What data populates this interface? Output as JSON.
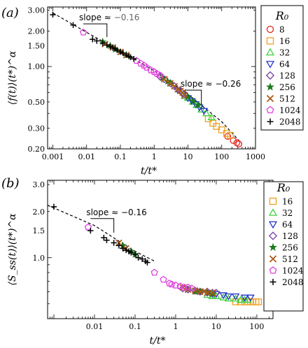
{
  "chart_data": [
    {
      "panel": "(a)",
      "type": "scatter",
      "xscale": "log",
      "yscale": "log",
      "xlabel": "t/t*",
      "ylabel": "⟨f(t)⟩(t*)^α",
      "xlim": [
        0.0007,
        1000
      ],
      "ylim": [
        0.2,
        3.2
      ],
      "x_tick_labels": [
        "0.001",
        "0.01",
        "0.1",
        "1",
        "10",
        "100",
        "1000"
      ],
      "x_ticks": [
        0.001,
        0.01,
        0.1,
        1,
        10,
        100,
        1000
      ],
      "y_tick_labels": [
        "3.00",
        "2.00",
        "1.50",
        "1.00",
        "0.50",
        "0.30",
        "0.20"
      ],
      "y_ticks": [
        3.0,
        2.0,
        1.5,
        1.0,
        0.5,
        0.3,
        0.2
      ],
      "legend_title": "R₀",
      "legend_position": "right",
      "annotations": [
        {
          "prefix": "slope ≈ ",
          "value": "−0.16"
        },
        {
          "prefix": "slope ≈ ",
          "value": "−0.26"
        }
      ],
      "annotation_slopes": [
        {
          "x0": 0.008,
          "x1": 0.04,
          "y0": 2.3,
          "slope": -0.16
        },
        {
          "x0": 8,
          "x1": 25,
          "y0": 0.63,
          "slope": -0.26
        }
      ],
      "fit_line": [
        [
          0.001,
          2.85
        ],
        [
          0.01,
          1.95
        ],
        [
          0.1,
          1.35
        ],
        [
          1,
          0.92
        ],
        [
          10,
          0.58
        ],
        [
          100,
          0.34
        ],
        [
          400,
          0.22
        ]
      ],
      "series": [
        {
          "name": "8",
          "marker": "circle",
          "color": "#e8251d",
          "points": [
            [
              150,
              0.255
            ],
            [
              220,
              0.235
            ],
            [
              280,
              0.225
            ],
            [
              320,
              0.22
            ]
          ]
        },
        {
          "name": "16",
          "marker": "square",
          "color": "#f0a020",
          "points": [
            [
              40,
              0.36
            ],
            [
              55,
              0.33
            ],
            [
              70,
              0.31
            ],
            [
              100,
              0.29
            ],
            [
              140,
              0.27
            ],
            [
              180,
              0.26
            ]
          ]
        },
        {
          "name": "32",
          "marker": "triangle-up",
          "color": "#3ecf3e",
          "points": [
            [
              8,
              0.56
            ],
            [
              10,
              0.54
            ],
            [
              14,
              0.5
            ],
            [
              18,
              0.47
            ],
            [
              25,
              0.43
            ],
            [
              35,
              0.4
            ],
            [
              50,
              0.37
            ]
          ]
        },
        {
          "name": "64",
          "marker": "triangle-down",
          "color": "#2233cc",
          "points": [
            [
              5,
              0.63
            ],
            [
              7,
              0.58
            ],
            [
              10,
              0.54
            ],
            [
              13,
              0.51
            ],
            [
              17,
              0.48
            ],
            [
              22,
              0.45
            ],
            [
              30,
              0.42
            ]
          ]
        },
        {
          "name": "128",
          "marker": "diamond",
          "color": "#7a3fa0",
          "points": [
            [
              1.5,
              0.82
            ],
            [
              2,
              0.78
            ],
            [
              3,
              0.72
            ],
            [
              4,
              0.68
            ],
            [
              6,
              0.62
            ],
            [
              8,
              0.58
            ]
          ]
        },
        {
          "name": "256",
          "marker": "star",
          "color": "#1a7a1a",
          "points": [
            [
              0.03,
              1.62
            ],
            [
              0.05,
              1.5
            ],
            [
              0.07,
              1.4
            ],
            [
              0.1,
              1.33
            ],
            [
              0.15,
              1.25
            ],
            [
              1.8,
              0.8
            ],
            [
              2.5,
              0.75
            ],
            [
              3,
              0.72
            ],
            [
              10,
              0.55
            ],
            [
              14,
              0.51
            ],
            [
              20,
              0.47
            ]
          ]
        },
        {
          "name": "512",
          "marker": "x",
          "color": "#b05a18",
          "points": [
            [
              0.035,
              1.55
            ],
            [
              0.06,
              1.45
            ],
            [
              0.1,
              1.33
            ],
            [
              0.15,
              1.25
            ],
            [
              2,
              0.78
            ],
            [
              3,
              0.72
            ],
            [
              4,
              0.68
            ],
            [
              5,
              0.64
            ],
            [
              6,
              0.62
            ],
            [
              7,
              0.6
            ],
            [
              8,
              0.57
            ]
          ]
        },
        {
          "name": "1024",
          "marker": "pentagon",
          "color": "#e040e0",
          "points": [
            [
              0.008,
              1.95
            ],
            [
              0.3,
              1.12
            ],
            [
              0.4,
              1.06
            ],
            [
              0.5,
              1.02
            ],
            [
              0.6,
              0.98
            ],
            [
              0.8,
              0.93
            ],
            [
              1,
              0.9
            ],
            [
              1.2,
              0.87
            ],
            [
              1.5,
              0.84
            ]
          ]
        },
        {
          "name": "2048",
          "marker": "plus",
          "color": "#000000",
          "points": [
            [
              0.001,
              2.75
            ],
            [
              0.004,
              2.25
            ],
            [
              0.015,
              1.7
            ],
            [
              0.02,
              1.65
            ],
            [
              0.03,
              1.58
            ],
            [
              0.04,
              1.52
            ],
            [
              0.05,
              1.48
            ],
            [
              0.06,
              1.44
            ],
            [
              0.07,
              1.42
            ],
            [
              0.08,
              1.38
            ],
            [
              0.1,
              1.33
            ],
            [
              0.12,
              1.3
            ],
            [
              0.15,
              1.25
            ],
            [
              0.18,
              1.22
            ],
            [
              0.2,
              1.2
            ],
            [
              0.25,
              1.16
            ]
          ]
        }
      ]
    },
    {
      "panel": "(b)",
      "type": "scatter",
      "xscale": "log",
      "yscale": "log",
      "xlabel": "t/t*",
      "ylabel": "⟨S_ss(t)⟩(t*)^α",
      "xlim": [
        0.0007,
        250
      ],
      "ylim": [
        0.4,
        3.2
      ],
      "x_tick_labels": [
        "0.01",
        "0.1",
        "1",
        "10",
        "100"
      ],
      "x_ticks": [
        0.01,
        0.1,
        1,
        10,
        100
      ],
      "y_tick_labels": [
        "3.0",
        "2.0",
        "1.5",
        "1.0"
      ],
      "y_ticks": [
        3.0,
        2.0,
        1.5,
        1.0
      ],
      "legend_title": "R₀",
      "legend_position": "right",
      "annotations": [
        {
          "prefix": "slope ≈ ",
          "value": "−0.16"
        }
      ],
      "annotation_slopes": [
        {
          "x0": 0.008,
          "x1": 0.03,
          "y0": 1.8,
          "slope": -0.16
        }
      ],
      "fit_line": [
        [
          0.0007,
          2.2
        ],
        [
          0.01,
          1.62
        ],
        [
          0.1,
          1.1
        ],
        [
          0.3,
          0.95
        ]
      ],
      "series": [
        {
          "name": "16",
          "marker": "square",
          "color": "#f0a020",
          "points": [
            [
              30,
              0.515
            ],
            [
              40,
              0.515
            ],
            [
              50,
              0.515
            ],
            [
              60,
              0.515
            ],
            [
              70,
              0.515
            ],
            [
              80,
              0.515
            ],
            [
              95,
              0.515
            ],
            [
              110,
              0.515
            ]
          ]
        },
        {
          "name": "32",
          "marker": "triangle-up",
          "color": "#3ecf3e",
          "points": [
            [
              6,
              0.57
            ],
            [
              8,
              0.56
            ],
            [
              10,
              0.56
            ],
            [
              15,
              0.55
            ],
            [
              20,
              0.54
            ],
            [
              30,
              0.54
            ],
            [
              40,
              0.53
            ],
            [
              50,
              0.53
            ],
            [
              60,
              0.53
            ]
          ]
        },
        {
          "name": "64",
          "marker": "triangle-down",
          "color": "#2233cc",
          "points": [
            [
              4,
              0.6
            ],
            [
              6,
              0.59
            ],
            [
              8,
              0.58
            ],
            [
              10,
              0.58
            ],
            [
              15,
              0.57
            ],
            [
              20,
              0.56
            ],
            [
              30,
              0.56
            ],
            [
              50,
              0.55
            ],
            [
              70,
              0.55
            ]
          ]
        },
        {
          "name": "128",
          "marker": "diamond",
          "color": "#7a3fa0",
          "points": [
            [
              1.5,
              0.63
            ],
            [
              2,
              0.62
            ],
            [
              3,
              0.61
            ],
            [
              4,
              0.6
            ],
            [
              6,
              0.6
            ],
            [
              8,
              0.59
            ],
            [
              10,
              0.59
            ]
          ]
        },
        {
          "name": "256",
          "marker": "star",
          "color": "#1a7a1a",
          "points": [
            [
              0.05,
              1.2
            ],
            [
              0.08,
              1.1
            ],
            [
              0.1,
              1.05
            ],
            [
              2,
              0.62
            ],
            [
              3,
              0.6
            ],
            [
              4,
              0.6
            ],
            [
              6,
              0.59
            ],
            [
              8,
              0.58
            ]
          ]
        },
        {
          "name": "512",
          "marker": "x",
          "color": "#b05a18",
          "points": [
            [
              0.04,
              1.25
            ],
            [
              0.06,
              1.15
            ],
            [
              1.5,
              0.64
            ],
            [
              2,
              0.62
            ],
            [
              3,
              0.61
            ],
            [
              4,
              0.6
            ],
            [
              5,
              0.6
            ],
            [
              6,
              0.59
            ],
            [
              8,
              0.59
            ]
          ]
        },
        {
          "name": "1024",
          "marker": "pentagon",
          "color": "#e040e0",
          "points": [
            [
              0.007,
              1.58
            ],
            [
              0.3,
              0.8
            ],
            [
              0.5,
              0.72
            ],
            [
              0.7,
              0.68
            ],
            [
              0.8,
              0.67
            ],
            [
              1,
              0.66
            ],
            [
              1.3,
              0.65
            ],
            [
              1.6,
              0.64
            ],
            [
              2,
              0.64
            ],
            [
              2.5,
              0.63
            ]
          ]
        },
        {
          "name": "2048",
          "marker": "plus",
          "color": "#000000",
          "points": [
            [
              0.001,
              2.15
            ],
            [
              0.008,
              1.5
            ],
            [
              0.017,
              1.35
            ],
            [
              0.02,
              1.3
            ],
            [
              0.03,
              1.25
            ],
            [
              0.04,
              1.2
            ],
            [
              0.05,
              1.15
            ],
            [
              0.06,
              1.12
            ],
            [
              0.07,
              1.1
            ],
            [
              0.08,
              1.08
            ],
            [
              0.1,
              1.05
            ],
            [
              0.12,
              1.0
            ],
            [
              0.15,
              0.98
            ],
            [
              0.18,
              0.95
            ],
            [
              0.2,
              0.93
            ]
          ]
        }
      ]
    }
  ]
}
